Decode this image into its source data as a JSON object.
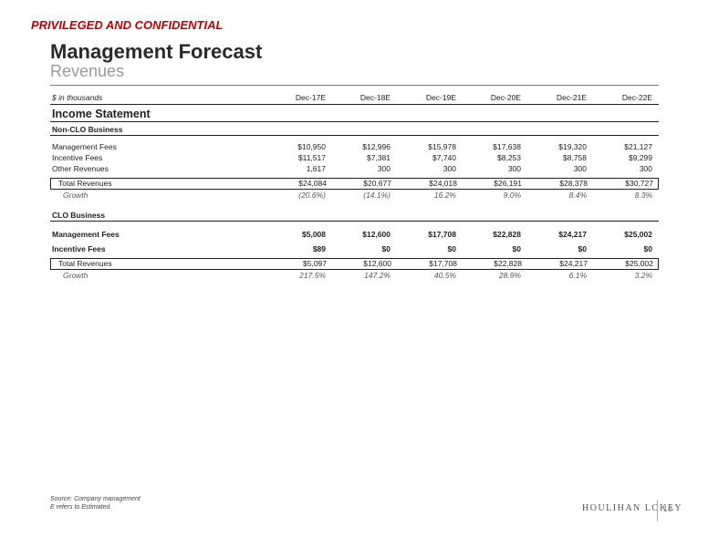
{
  "header": {
    "confidential": "PRIVILEGED AND CONFIDENTIAL",
    "title": "Management Forecast",
    "subtitle": "Revenues"
  },
  "table": {
    "units": "$ in thousands",
    "periods": [
      "Dec-17E",
      "Dec-18E",
      "Dec-19E",
      "Dec-20E",
      "Dec-21E",
      "Dec-22E"
    ],
    "section_title": "Income Statement",
    "non_clo": {
      "title": "Non-CLO Business",
      "rows": [
        {
          "label": "Management Fees",
          "values": [
            "$10,950",
            "$12,996",
            "$15,978",
            "$17,638",
            "$19,320",
            "$21,127"
          ]
        },
        {
          "label": "Incentive Fees",
          "values": [
            "$11,517",
            "$7,381",
            "$7,740",
            "$8,253",
            "$8,758",
            "$9,299"
          ]
        },
        {
          "label": "Other Revenues",
          "values": [
            "1,617",
            "300",
            "300",
            "300",
            "300",
            "300"
          ]
        }
      ],
      "total": {
        "label": "Total Revenues",
        "values": [
          "$24,084",
          "$20,677",
          "$24,018",
          "$26,191",
          "$28,378",
          "$30,727"
        ]
      },
      "growth": {
        "label": "Growth",
        "values": [
          "(20.6%)",
          "(14.1%)",
          "16.2%",
          "9.0%",
          "8.4%",
          "8.3%"
        ]
      }
    },
    "clo": {
      "title": "CLO Business",
      "rows": [
        {
          "label": "Management Fees",
          "values": [
            "$5,008",
            "$12,600",
            "$17,708",
            "$22,828",
            "$24,217",
            "$25,002"
          ]
        },
        {
          "label": "Incentive Fees",
          "values": [
            "$89",
            "$0",
            "$0",
            "$0",
            "$0",
            "$0"
          ]
        }
      ],
      "total": {
        "label": "Total Revenues",
        "values": [
          "$5,097",
          "$12,600",
          "$17,708",
          "$22,828",
          "$24,217",
          "$25,002"
        ]
      },
      "growth": {
        "label": "Growth",
        "values": [
          "217.5%",
          "147.2%",
          "40.5%",
          "28.9%",
          "6.1%",
          "3.2%"
        ]
      }
    }
  },
  "footer": {
    "source": "Source: Company management",
    "note": "E refers to Estimated.",
    "logo": "HOULIHAN LOKEY",
    "page_number": "16"
  }
}
